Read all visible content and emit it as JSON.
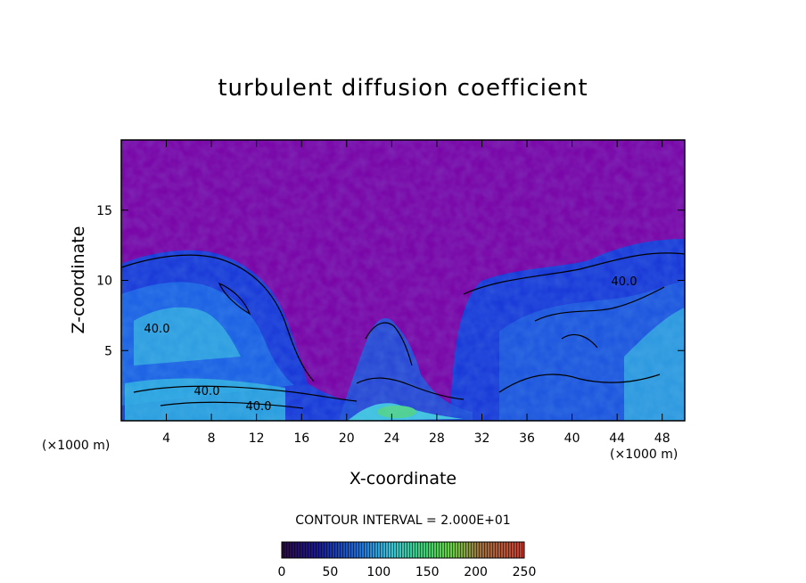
{
  "chart_data": {
    "type": "heatmap",
    "title": "turbulent diffusion coefficient",
    "xlabel": "X-coordinate",
    "ylabel": "Z-coordinate",
    "x_unit": "(×1000 m)",
    "y_unit": "(×1000 m)",
    "xlim": [
      0,
      50
    ],
    "ylim": [
      0,
      20
    ],
    "x_ticks": [
      4,
      8,
      12,
      16,
      20,
      24,
      28,
      32,
      36,
      40,
      44,
      48
    ],
    "y_ticks": [
      5,
      10,
      15
    ],
    "contour_interval_text": "CONTOUR INTERVAL = 2.000E+01",
    "contour_labels": [
      "40.0",
      "40.0",
      "40.0",
      "40.0"
    ],
    "colorbar": {
      "min": 0,
      "max": 250,
      "ticks": [
        0,
        50,
        100,
        150,
        200,
        250
      ]
    }
  },
  "colors": {
    "background_field": "#7a05a8",
    "low": "#1e1e78",
    "mid": "#1a7ae0",
    "high": "#38c8e0",
    "contour": "#000000"
  }
}
